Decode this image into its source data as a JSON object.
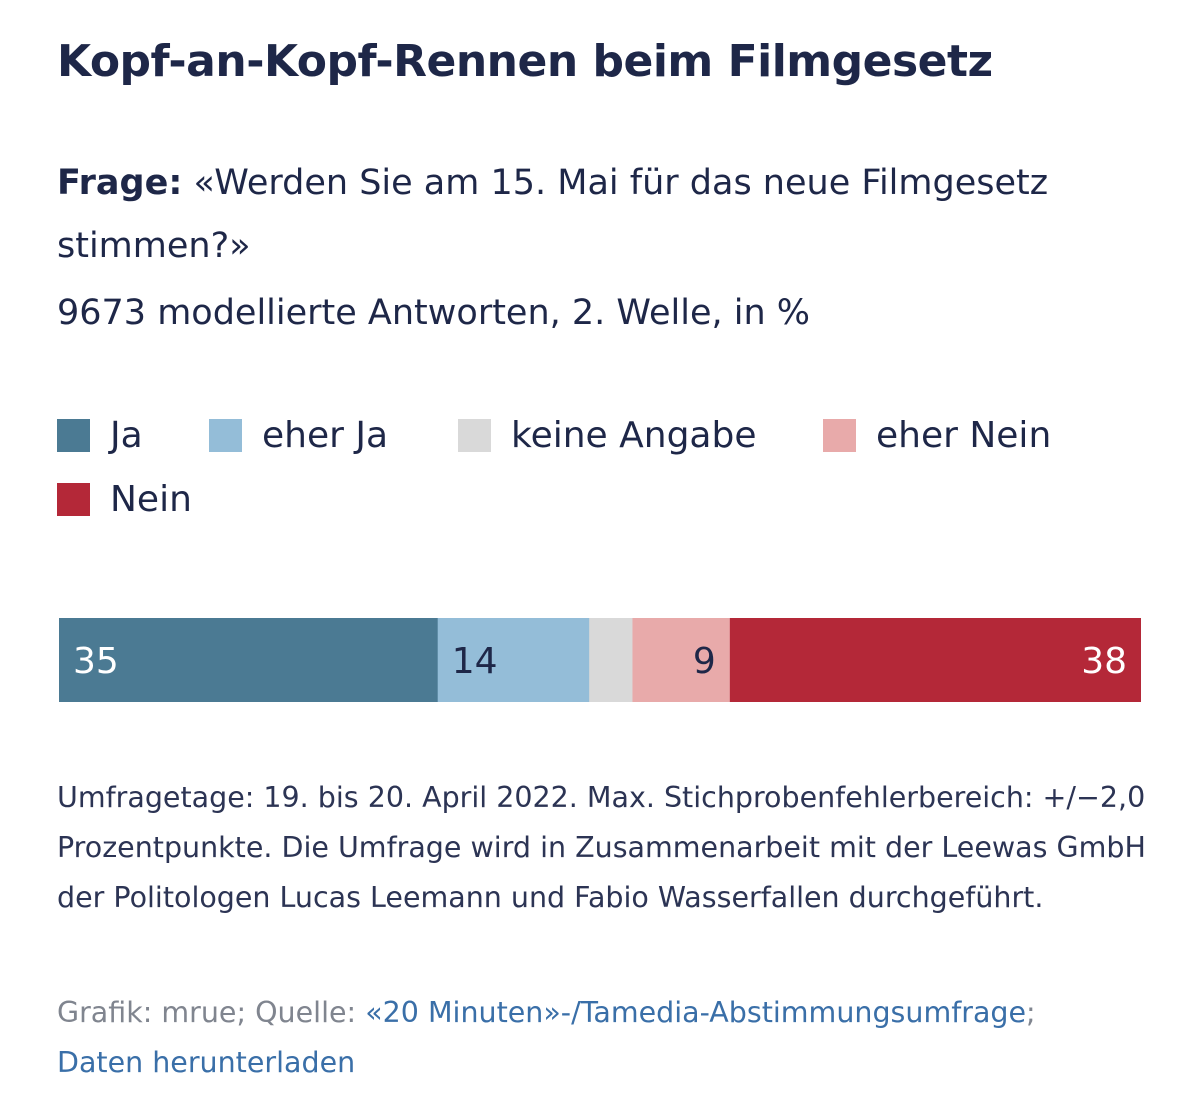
{
  "title": "Kopf-an-Kopf-Rennen beim Filmgesetz",
  "question_label": "Frage:",
  "question_text": "«Werden Sie am 15. Mai für das neue Filmgesetz stimmen?»",
  "meta": "9673 modellierte Antworten, 2. Welle, in %",
  "legend": [
    {
      "label": "Ja",
      "color": "#4b7a93"
    },
    {
      "label": "eher Ja",
      "color": "#94bdd8"
    },
    {
      "label": "keine Angabe",
      "color": "#d9d9d9"
    },
    {
      "label": "eher Nein",
      "color": "#e8aaaa"
    },
    {
      "label": "Nein",
      "color": "#b42838"
    }
  ],
  "chart_data": {
    "type": "bar",
    "orientation": "horizontal-stacked",
    "unit": "%",
    "categories": [
      "Ja",
      "eher Ja",
      "keine Angabe",
      "eher Nein",
      "Nein"
    ],
    "values": [
      35,
      14,
      4,
      9,
      38
    ],
    "data_labels": [
      "35",
      "14",
      "",
      "9",
      "38"
    ],
    "colors": [
      "#4b7a93",
      "#94bdd8",
      "#d9d9d9",
      "#e8aaaa",
      "#b42838"
    ],
    "label_colors": [
      "#ffffff",
      "#1e2748",
      "#1e2748",
      "#1e2748",
      "#ffffff"
    ],
    "label_align": [
      "start",
      "start",
      "start",
      "end",
      "end"
    ],
    "xlim": [
      0,
      100
    ]
  },
  "note": "Umfragetage: 19. bis 20. April 2022. Max. Stichprobenfehlerbereich: +/−2,0 Prozentpunkte. Die Umfrage wird in Zusammenarbeit mit der Leewas GmbH der Politologen Lucas Leemann und Fabio Wasserfallen durchgeführt.",
  "source": {
    "prefix": "Grafik: mrue; Quelle: ",
    "link_text": "«20 Minuten»-/Tamedia-Abstimmungsumfrage",
    "separator": ";",
    "download_text": "Daten herunterladen"
  }
}
